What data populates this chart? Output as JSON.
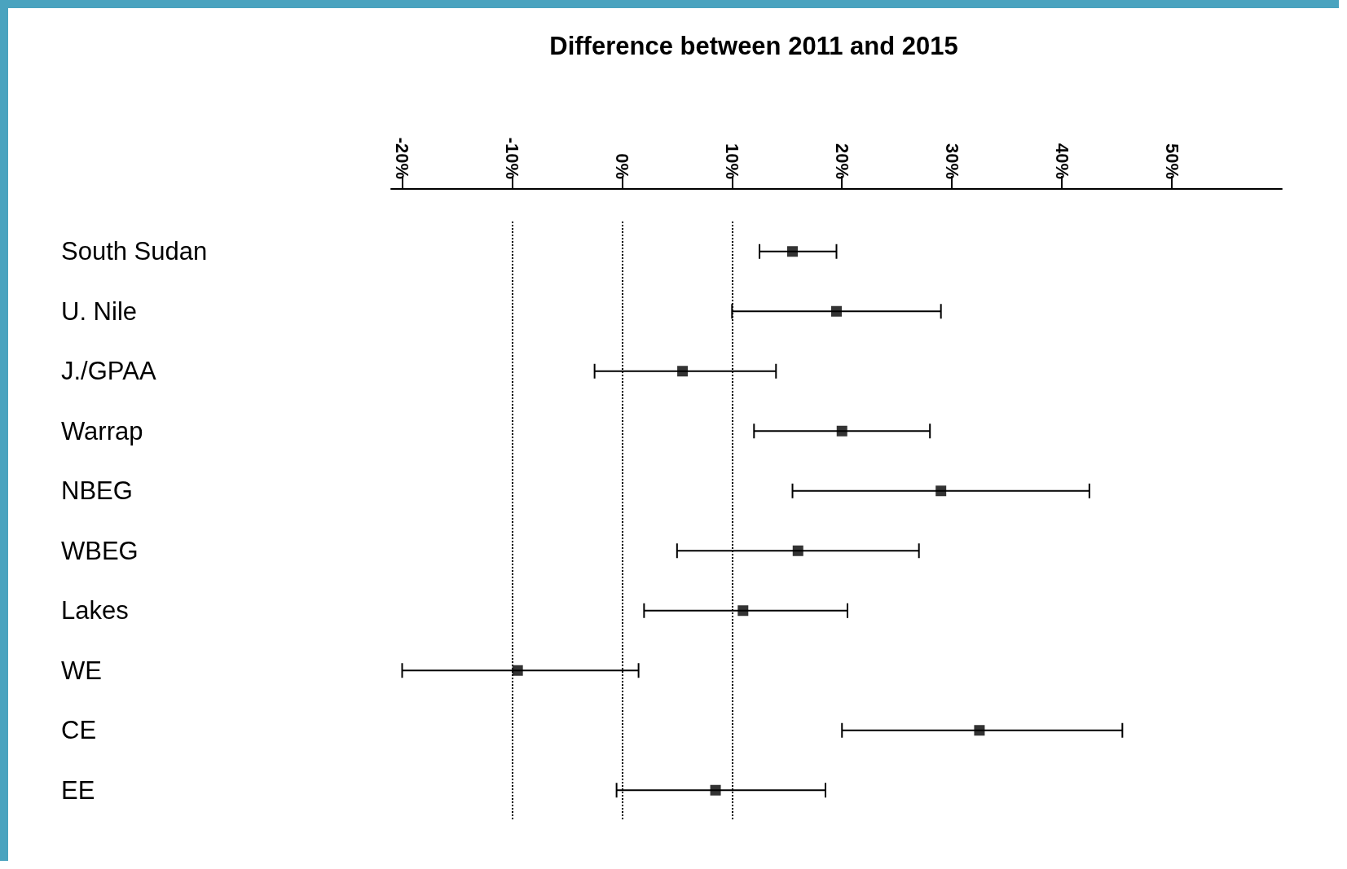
{
  "chart_data": {
    "type": "scatter",
    "title": "Difference between 2011 and 2015",
    "orientation": "horizontal",
    "categories": [
      "South Sudan",
      "U. Nile",
      "J./GPAA",
      "Warrap",
      "NBEG",
      "WBEG",
      "Lakes",
      "WE",
      "CE",
      "EE"
    ],
    "values": [
      15.5,
      19.5,
      5.5,
      20,
      29,
      16,
      11,
      -9.5,
      32.5,
      8.5
    ],
    "errors": [
      [
        12.5,
        19.5
      ],
      [
        10,
        29
      ],
      [
        -2.5,
        14
      ],
      [
        12,
        28
      ],
      [
        15.5,
        42.5
      ],
      [
        5,
        27
      ],
      [
        2,
        20.5
      ],
      [
        -20,
        1.5
      ],
      [
        20,
        45.5
      ],
      [
        -0.5,
        18.5
      ]
    ],
    "color": "#000000",
    "marker": "square",
    "xlim": [
      -21,
      60
    ],
    "xticks": [
      {
        "value": -20,
        "label": "-20%"
      },
      {
        "value": -10,
        "label": "-10%"
      },
      {
        "value": 0,
        "label": "0%"
      },
      {
        "value": 10,
        "label": "10%"
      },
      {
        "value": 20,
        "label": "20%"
      },
      {
        "value": 30,
        "label": "30%"
      },
      {
        "value": 40,
        "label": "40%"
      },
      {
        "value": 50,
        "label": "50%"
      }
    ],
    "ref_lines": [
      {
        "axis": "x",
        "value": -10,
        "color": "#000000",
        "line_style": "dotted"
      },
      {
        "axis": "x",
        "value": 0,
        "color": "#000000",
        "line_style": "dotted"
      },
      {
        "axis": "x",
        "value": 10,
        "color": "#000000",
        "line_style": "dotted"
      }
    ]
  }
}
